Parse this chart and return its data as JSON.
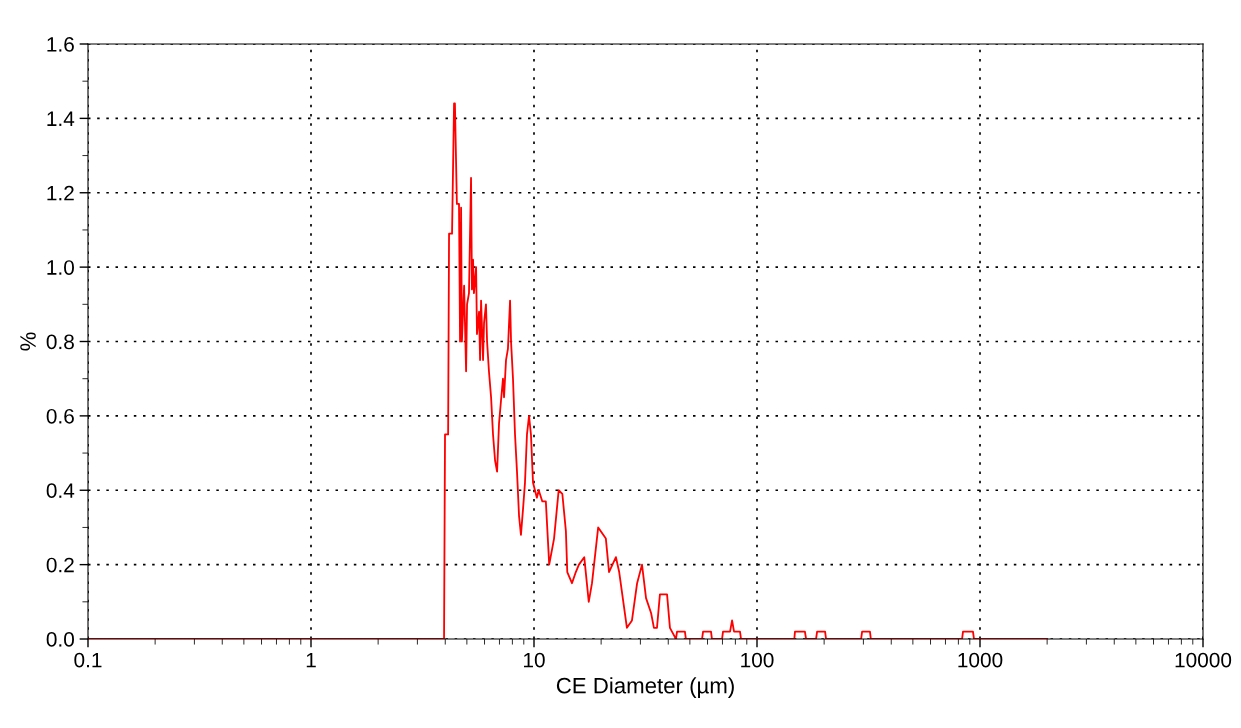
{
  "chart_data": {
    "type": "line",
    "xlabel": "CE Diameter (µm)",
    "ylabel": "%",
    "log": "x",
    "xlim": [
      0.1,
      10000
    ],
    "xticks": [
      0.1,
      1,
      10,
      100,
      1000,
      10000
    ],
    "ylim": [
      0,
      1.6
    ],
    "yticks": [
      {
        "value": 0,
        "label": "0.0"
      },
      {
        "value": 0.2,
        "label": "0.2"
      },
      {
        "value": 0.4,
        "label": "0.4"
      },
      {
        "value": 0.6,
        "label": "0.6"
      },
      {
        "value": 0.8,
        "label": "0.8"
      },
      {
        "value": 1.0,
        "label": "1.0"
      },
      {
        "value": 1.2,
        "label": "1.2"
      },
      {
        "value": 1.4,
        "label": "1.4"
      },
      {
        "value": 1.6,
        "label": "1.6"
      }
    ],
    "grid": true,
    "marker": "none",
    "line_style": "solid",
    "series": [
      {
        "color": "#ff0000",
        "x": [
          0.1,
          3.95,
          3.99,
          4.12,
          4.16,
          4.29,
          4.38,
          4.42,
          4.51,
          4.61,
          4.66,
          4.71,
          4.75,
          4.86,
          4.96,
          5.01,
          5.11,
          5.22,
          5.27,
          5.33,
          5.38,
          5.5,
          5.55,
          5.67,
          5.73,
          5.79,
          5.91,
          5.97,
          6.09,
          6.16,
          6.28,
          6.42,
          6.55,
          6.69,
          6.83,
          6.97,
          7.11,
          7.26,
          7.34,
          7.49,
          7.64,
          7.81,
          7.89,
          8.05,
          8.22,
          8.39,
          8.57,
          8.74,
          8.93,
          9.11,
          9.3,
          9.5,
          9.69,
          9.9,
          10.1,
          10.3,
          10.5,
          10.9,
          11.3,
          11.7,
          12.3,
          12.9,
          13.4,
          13.9,
          14.1,
          14.8,
          15.4,
          15.9,
          16.8,
          17.6,
          18.2,
          19.4,
          21.0,
          21.7,
          23.3,
          24.1,
          26.1,
          27.5,
          29.0,
          30.5,
          31.8,
          33.5,
          34.5,
          35.6,
          36.7,
          39.5,
          40.7,
          43.3,
          43.8,
          47.5,
          48.0,
          56.7,
          57.3,
          62.2,
          62.8,
          69.7,
          70.4,
          75.7,
          77.3,
          78.9,
          83.9,
          84.8,
          147,
          148,
          164,
          166,
          184,
          186,
          202,
          204,
          293,
          296,
          321,
          324,
          831,
          839,
          930,
          940,
          2000
        ],
        "values": [
          0,
          0,
          0.55,
          0.55,
          1.09,
          1.09,
          1.44,
          1.44,
          1.17,
          1.17,
          0.8,
          1.16,
          0.8,
          0.95,
          0.72,
          0.9,
          0.93,
          1.24,
          0.94,
          1.02,
          0.93,
          1.0,
          0.82,
          0.88,
          0.75,
          0.91,
          0.75,
          0.85,
          0.9,
          0.8,
          0.72,
          0.65,
          0.55,
          0.48,
          0.45,
          0.58,
          0.64,
          0.7,
          0.65,
          0.75,
          0.78,
          0.91,
          0.8,
          0.7,
          0.55,
          0.45,
          0.33,
          0.28,
          0.35,
          0.42,
          0.55,
          0.6,
          0.55,
          0.42,
          0.4,
          0.38,
          0.4,
          0.37,
          0.37,
          0.2,
          0.27,
          0.4,
          0.39,
          0.29,
          0.18,
          0.15,
          0.18,
          0.2,
          0.22,
          0.1,
          0.15,
          0.3,
          0.27,
          0.18,
          0.22,
          0.18,
          0.03,
          0.05,
          0.15,
          0.2,
          0.11,
          0.07,
          0.03,
          0.03,
          0.12,
          0.12,
          0.03,
          0,
          0.02,
          0.02,
          0,
          0,
          0.02,
          0.02,
          0,
          0,
          0.02,
          0.02,
          0.05,
          0.02,
          0.02,
          0,
          0,
          0.02,
          0.02,
          0,
          0,
          0.02,
          0.02,
          0,
          0,
          0.02,
          0.02,
          0,
          0,
          0.02,
          0.02,
          0,
          0
        ]
      }
    ]
  }
}
